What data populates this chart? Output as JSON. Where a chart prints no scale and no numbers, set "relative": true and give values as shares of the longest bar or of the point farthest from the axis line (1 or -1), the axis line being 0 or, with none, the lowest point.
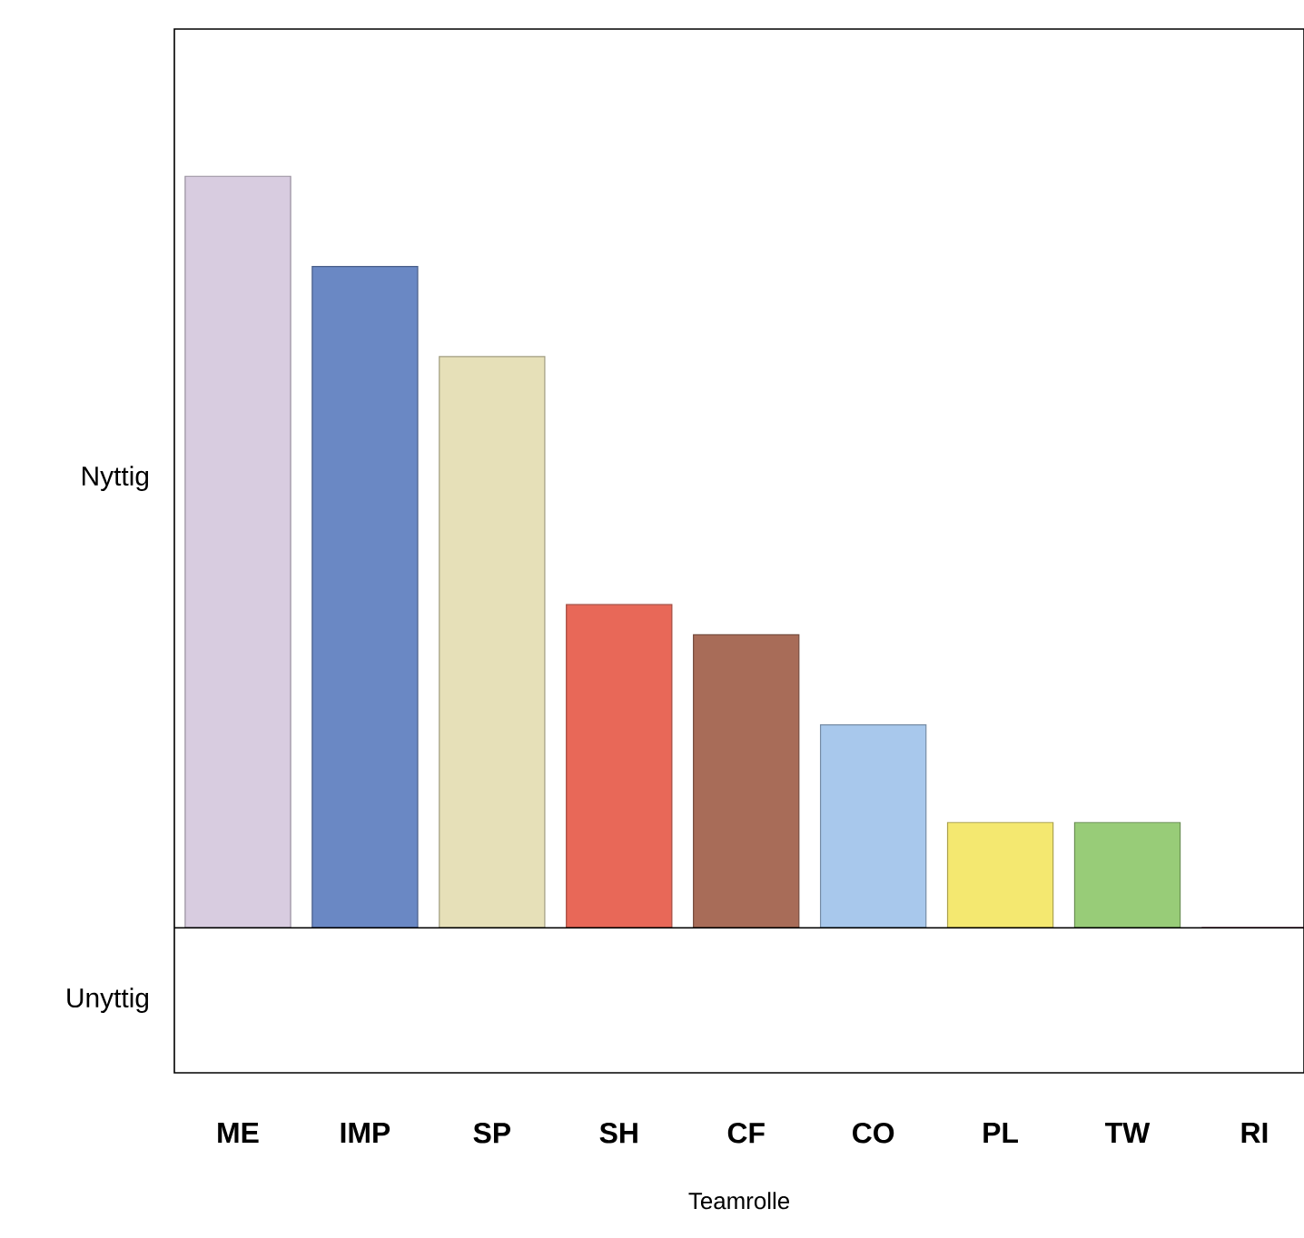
{
  "chart_data": {
    "type": "bar",
    "relative": true,
    "xlabel": "Teamrolle",
    "categories": [
      "ME",
      "IMP",
      "SP",
      "SH",
      "CF",
      "CO",
      "PL",
      "TW",
      "RI"
    ],
    "values": [
      1.0,
      0.88,
      0.76,
      0.43,
      0.39,
      0.27,
      0.14,
      0.14,
      0.0
    ],
    "colors": [
      "#d8cce0",
      "#6a88c4",
      "#e6e0b8",
      "#e86858",
      "#a86c58",
      "#a8c8ec",
      "#f4e870",
      "#98cc78",
      "#a02050"
    ],
    "annotations": [
      "Nyttig",
      "Unyttig"
    ]
  }
}
